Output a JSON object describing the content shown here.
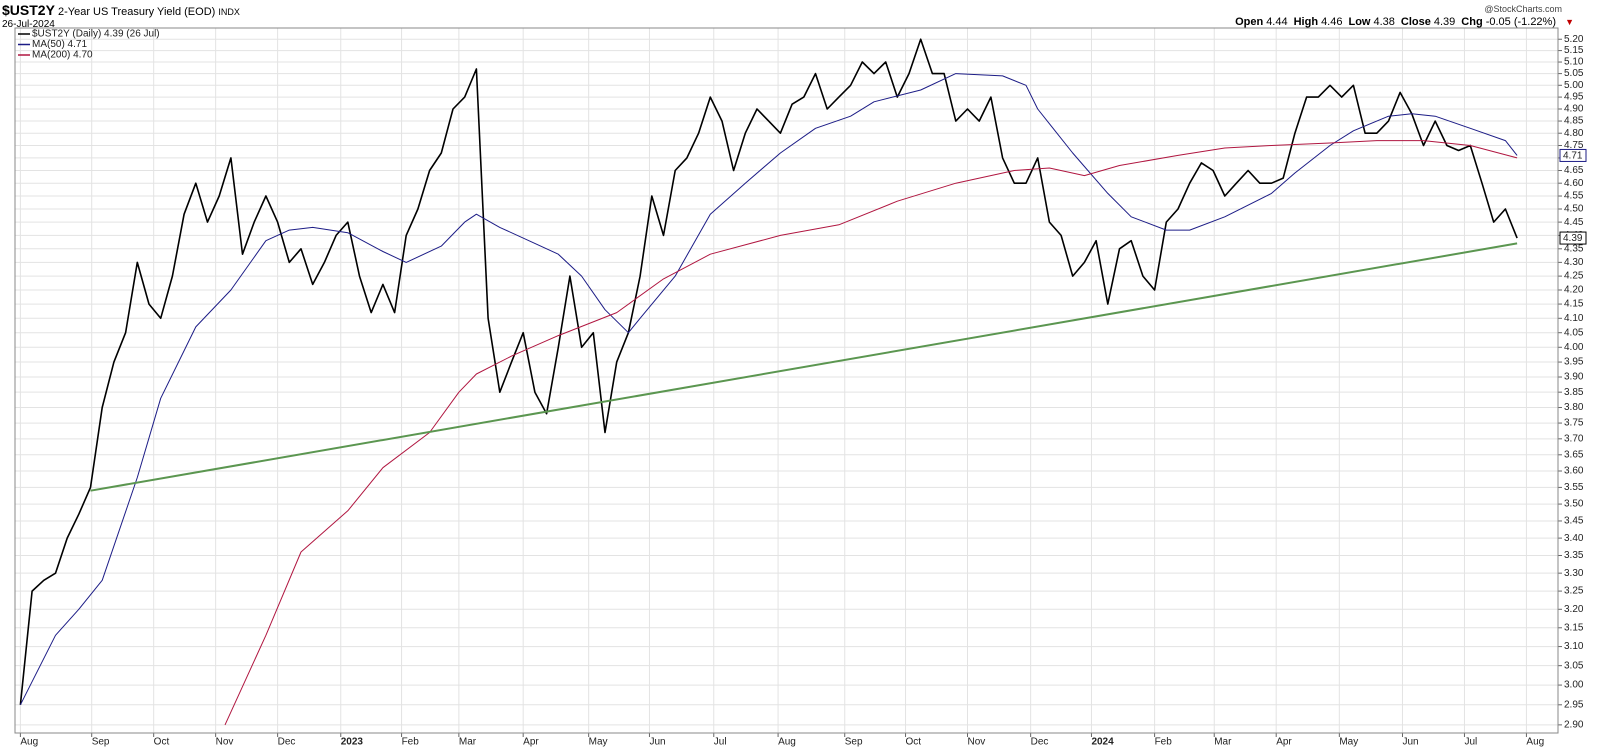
{
  "header": {
    "symbol": "$UST2Y",
    "name": "2-Year US Treasury Yield (EOD)",
    "exchange": "INDX",
    "date": "26-Jul-2024",
    "quote": [
      {
        "label": "Open",
        "value": 4.44
      },
      {
        "label": "High",
        "value": 4.46
      },
      {
        "label": "Low",
        "value": 4.38
      },
      {
        "label": "Close",
        "value": 4.39
      },
      {
        "label": "Chg",
        "value": "-0.05 (-1.22%)"
      }
    ],
    "credit": "@StockCharts.com"
  },
  "chart_data": {
    "type": "line",
    "ylog": true,
    "grid": true,
    "xlim": [
      -0.46,
      131.5
    ],
    "ylim": [
      2.88,
      5.25
    ],
    "xticks": [
      {
        "value": 0,
        "label": "Aug"
      },
      {
        "value": 6.1,
        "label": "Sep"
      },
      {
        "value": 11.4,
        "label": "Oct"
      },
      {
        "value": 16.7,
        "label": "Nov"
      },
      {
        "value": 22.0,
        "label": "Dec"
      },
      {
        "value": 27.4,
        "label": "2023"
      },
      {
        "value": 32.6,
        "label": "Feb"
      },
      {
        "value": 37.5,
        "label": "Mar"
      },
      {
        "value": 43.0,
        "label": "Apr"
      },
      {
        "value": 48.6,
        "label": "May"
      },
      {
        "value": 53.8,
        "label": "Jun"
      },
      {
        "value": 59.3,
        "label": "Jul"
      },
      {
        "value": 64.8,
        "label": "Aug"
      },
      {
        "value": 70.5,
        "label": "Sep"
      },
      {
        "value": 75.7,
        "label": "Oct"
      },
      {
        "value": 81.0,
        "label": "Nov"
      },
      {
        "value": 86.4,
        "label": "Dec"
      },
      {
        "value": 91.6,
        "label": "2024"
      },
      {
        "value": 97.0,
        "label": "Feb"
      },
      {
        "value": 102.1,
        "label": "Mar"
      },
      {
        "value": 107.4,
        "label": "Apr"
      },
      {
        "value": 112.8,
        "label": "May"
      },
      {
        "value": 118.2,
        "label": "Jun"
      },
      {
        "value": 123.5,
        "label": "Jul"
      },
      {
        "value": 128.8,
        "label": "Aug"
      }
    ],
    "yticks": [
      {
        "value": 2.9,
        "label": "2.90"
      },
      {
        "value": 2.95,
        "label": "2.95"
      },
      {
        "value": 3.0,
        "label": "3.00"
      },
      {
        "value": 3.05,
        "label": "3.05"
      },
      {
        "value": 3.1,
        "label": "3.10"
      },
      {
        "value": 3.15,
        "label": "3.15"
      },
      {
        "value": 3.2,
        "label": "3.20"
      },
      {
        "value": 3.25,
        "label": "3.25"
      },
      {
        "value": 3.3,
        "label": "3.30"
      },
      {
        "value": 3.35,
        "label": "3.35"
      },
      {
        "value": 3.4,
        "label": "3.40"
      },
      {
        "value": 3.45,
        "label": "3.45"
      },
      {
        "value": 3.5,
        "label": "3.50"
      },
      {
        "value": 3.55,
        "label": "3.55"
      },
      {
        "value": 3.6,
        "label": "3.60"
      },
      {
        "value": 3.65,
        "label": "3.65"
      },
      {
        "value": 3.7,
        "label": "3.70"
      },
      {
        "value": 3.75,
        "label": "3.75"
      },
      {
        "value": 3.8,
        "label": "3.80"
      },
      {
        "value": 3.85,
        "label": "3.85"
      },
      {
        "value": 3.9,
        "label": "3.90"
      },
      {
        "value": 3.95,
        "label": "3.95"
      },
      {
        "value": 4.0,
        "label": "4.00"
      },
      {
        "value": 4.05,
        "label": "4.05"
      },
      {
        "value": 4.1,
        "label": "4.10"
      },
      {
        "value": 4.15,
        "label": "4.15"
      },
      {
        "value": 4.2,
        "label": "4.20"
      },
      {
        "value": 4.25,
        "label": "4.25"
      },
      {
        "value": 4.3,
        "label": "4.30"
      },
      {
        "value": 4.35,
        "label": "4.35"
      },
      {
        "value": 4.4,
        "label": "4.40"
      },
      {
        "value": 4.45,
        "label": "4.45"
      },
      {
        "value": 4.5,
        "label": "4.50"
      },
      {
        "value": 4.55,
        "label": "4.55"
      },
      {
        "value": 4.6,
        "label": "4.60"
      },
      {
        "value": 4.65,
        "label": "4.65"
      },
      {
        "value": 4.7,
        "label": "4.70"
      },
      {
        "value": 4.75,
        "label": "4.75"
      },
      {
        "value": 4.8,
        "label": "4.80"
      },
      {
        "value": 4.85,
        "label": "4.85"
      },
      {
        "value": 4.9,
        "label": "4.90"
      },
      {
        "value": 4.95,
        "label": "4.95"
      },
      {
        "value": 5.0,
        "label": "5.00"
      },
      {
        "value": 5.05,
        "label": "5.05"
      },
      {
        "value": 5.1,
        "label": "5.10"
      },
      {
        "value": 5.15,
        "label": "5.15"
      },
      {
        "value": 5.2,
        "label": "5.20"
      }
    ],
    "series": [
      {
        "name": "$UST2Y (Daily) 4.39 (26 Jul)",
        "color": "#000000",
        "width": 1.6,
        "end_label": true,
        "values": [
          2.95,
          3.25,
          3.28,
          3.3,
          3.4,
          3.47,
          3.55,
          3.8,
          3.95,
          4.05,
          4.3,
          4.15,
          4.1,
          4.25,
          4.48,
          4.6,
          4.45,
          4.55,
          4.7,
          4.33,
          4.45,
          4.55,
          4.45,
          4.3,
          4.35,
          4.22,
          4.3,
          4.4,
          4.45,
          4.25,
          4.12,
          4.22,
          4.12,
          4.4,
          4.5,
          4.65,
          4.72,
          4.9,
          4.95,
          5.07,
          4.1,
          3.85,
          3.95,
          4.05,
          3.85,
          3.78,
          4.0,
          4.25,
          4.0,
          4.05,
          3.72,
          3.95,
          4.05,
          4.25,
          4.55,
          4.4,
          4.65,
          4.7,
          4.8,
          4.95,
          4.85,
          4.65,
          4.8,
          4.9,
          4.85,
          4.8,
          4.92,
          4.95,
          5.05,
          4.9,
          4.95,
          5.0,
          5.1,
          5.05,
          5.1,
          4.95,
          5.05,
          5.2,
          5.05,
          5.05,
          4.85,
          4.9,
          4.85,
          4.95,
          4.7,
          4.6,
          4.6,
          4.7,
          4.45,
          4.4,
          4.25,
          4.3,
          4.38,
          4.15,
          4.35,
          4.38,
          4.25,
          4.2,
          4.45,
          4.5,
          4.6,
          4.68,
          4.65,
          4.55,
          4.6,
          4.65,
          4.6,
          4.6,
          4.62,
          4.8,
          4.95,
          4.95,
          5.0,
          4.95,
          5.0,
          4.8,
          4.8,
          4.85,
          4.97,
          4.88,
          4.75,
          4.85,
          4.75,
          4.73,
          4.75,
          4.6,
          4.45,
          4.5,
          4.39
        ]
      },
      {
        "name": "MA(50) 4.71",
        "color": "#1c1c86",
        "width": 1,
        "end_label": true,
        "x": [
          0,
          3,
          5,
          7,
          10,
          12,
          15,
          18,
          21,
          23,
          25,
          28,
          31,
          33,
          36,
          38,
          39,
          41,
          44,
          46,
          48,
          50,
          52,
          53,
          56,
          59,
          62,
          65,
          68,
          71,
          73,
          77,
          80,
          84,
          86,
          87,
          90,
          93,
          95,
          98,
          100,
          103,
          107,
          109,
          112,
          114,
          117,
          119,
          121,
          124,
          127,
          128
        ],
        "values": [
          2.95,
          3.13,
          3.2,
          3.28,
          3.58,
          3.83,
          4.07,
          4.2,
          4.38,
          4.42,
          4.43,
          4.41,
          4.34,
          4.3,
          4.36,
          4.45,
          4.48,
          4.43,
          4.37,
          4.33,
          4.25,
          4.13,
          4.05,
          4.1,
          4.25,
          4.48,
          4.6,
          4.72,
          4.82,
          4.87,
          4.93,
          4.98,
          5.05,
          5.04,
          5.0,
          4.9,
          4.72,
          4.56,
          4.47,
          4.42,
          4.42,
          4.47,
          4.56,
          4.64,
          4.75,
          4.81,
          4.87,
          4.88,
          4.87,
          4.82,
          4.77,
          4.71
        ]
      },
      {
        "name": "MA(200) 4.70",
        "color": "#b01640",
        "width": 1,
        "x": [
          17.5,
          21,
          24,
          28,
          31,
          35,
          37.5,
          39,
          42,
          46,
          51,
          55,
          59,
          65,
          70,
          75,
          80,
          85,
          88,
          91,
          94,
          99,
          103,
          107,
          112,
          116,
          120,
          124,
          128
        ],
        "values": [
          2.9,
          3.13,
          3.36,
          3.48,
          3.61,
          3.72,
          3.85,
          3.91,
          3.97,
          4.04,
          4.12,
          4.24,
          4.33,
          4.4,
          4.44,
          4.53,
          4.6,
          4.65,
          4.66,
          4.63,
          4.67,
          4.71,
          4.74,
          4.75,
          4.76,
          4.77,
          4.77,
          4.75,
          4.7
        ]
      },
      {
        "color": "#5b9650",
        "width": 2,
        "x": [
          6,
          128
        ],
        "values": [
          3.54,
          4.37
        ]
      }
    ]
  }
}
